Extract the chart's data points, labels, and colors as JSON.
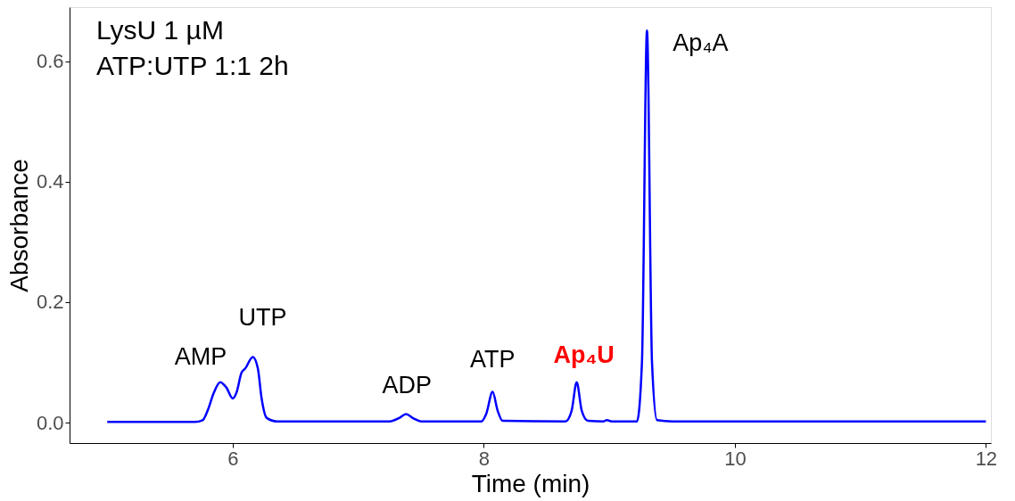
{
  "chart_data": {
    "type": "line",
    "xlabel": "Time (min)",
    "ylabel": "Absorbance",
    "xlim": [
      4.7,
      12.04
    ],
    "ylim": [
      -0.034,
      0.69
    ],
    "xticks": [
      6,
      8,
      10,
      12
    ],
    "yticks": [
      {
        "value": 0,
        "label": "0.0"
      },
      {
        "value": 0.2,
        "label": "0.2"
      },
      {
        "value": 0.4,
        "label": "0.4"
      },
      {
        "value": 0.6,
        "label": "0.6"
      }
    ],
    "grid": false,
    "legend": false,
    "marker": "none",
    "line_style": "solid",
    "x": [
      5.0,
      5.7,
      5.76,
      5.8,
      5.85,
      5.9,
      5.95,
      6.0,
      6.03,
      6.07,
      6.1,
      6.16,
      6.2,
      6.23,
      6.27,
      6.35,
      7.25,
      7.33,
      7.38,
      7.44,
      7.5,
      7.98,
      8.02,
      8.07,
      8.11,
      8.15,
      8.65,
      8.7,
      8.74,
      8.78,
      8.83,
      8.95,
      8.98,
      9.02,
      9.22,
      9.26,
      9.3,
      9.34,
      9.38,
      9.5,
      12.0
    ],
    "series": [
      {
        "color": "#0000ff",
        "values": [
          0.001,
          0.001,
          0.004,
          0.02,
          0.05,
          0.067,
          0.058,
          0.04,
          0.05,
          0.083,
          0.09,
          0.109,
          0.09,
          0.04,
          0.008,
          0.002,
          0.002,
          0.008,
          0.014,
          0.007,
          0.002,
          0.002,
          0.015,
          0.051,
          0.02,
          0.003,
          0.002,
          0.02,
          0.067,
          0.02,
          0.003,
          0.002,
          0.004,
          0.002,
          0.002,
          0.1,
          0.651,
          0.1,
          0.004,
          0.002,
          0.002
        ]
      }
    ],
    "annotations": [
      "LysU 1 µM",
      "ATP:UTP 1:1 2h",
      {
        "text": "AMP",
        "x": 5.9,
        "y": 0.067
      },
      {
        "text": "UTP",
        "x": 6.16,
        "y": 0.109
      },
      {
        "text": "ADP",
        "x": 7.38,
        "y": 0.014
      },
      {
        "text": "ATP",
        "x": 8.07,
        "y": 0.051
      },
      {
        "text": "Ap₄U",
        "x": 8.74,
        "y": 0.067
      },
      {
        "text": "Ap₄A",
        "x": 9.3,
        "y": 0.651
      }
    ]
  }
}
